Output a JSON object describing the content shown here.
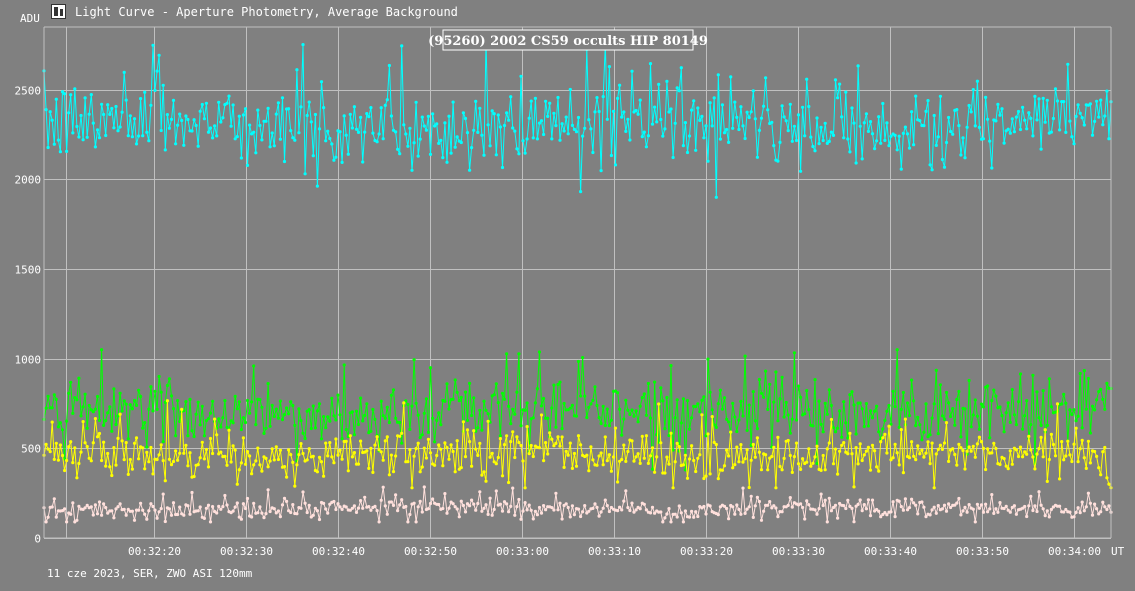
{
  "window": {
    "title": "Light Curve - Aperture Photometry, Average Background"
  },
  "footer": {
    "text": "11 cze 2023, SER, ZWO ASI 120mm"
  },
  "colors": {
    "background": "#808080",
    "grid": "#c0c0c0",
    "series": [
      "#00ffff",
      "#00ff00",
      "#ffff00",
      "#ffe0dc"
    ]
  },
  "chart_data": {
    "type": "line",
    "title": "(95260) 2002 CS59 occults HIP 80149",
    "ylabel": "ADU",
    "xlabel": "UT",
    "ylim": [
      0,
      2850
    ],
    "xlim": [
      "00:32:08",
      "00:34:04"
    ],
    "y_ticks": [
      0,
      500,
      1000,
      1500,
      2000,
      2500
    ],
    "x_ticks": [
      "00:32:20",
      "00:32:30",
      "00:32:40",
      "00:32:50",
      "00:33:00",
      "00:33:10",
      "00:33:20",
      "00:33:30",
      "00:33:40",
      "00:33:50",
      "00:34:00"
    ],
    "grid": true,
    "markers": true,
    "series": [
      {
        "color": "#00ffff",
        "mean": 2300,
        "spread": 110,
        "min": 1900,
        "max": 2810
      },
      {
        "color": "#00ff00",
        "mean": 700,
        "spread": 85,
        "min": 380,
        "max": 1050
      },
      {
        "color": "#ffff00",
        "mean": 470,
        "spread": 70,
        "min": 280,
        "max": 950
      },
      {
        "color": "#ffe0dc",
        "mean": 165,
        "spread": 28,
        "min": 90,
        "max": 310
      }
    ]
  }
}
